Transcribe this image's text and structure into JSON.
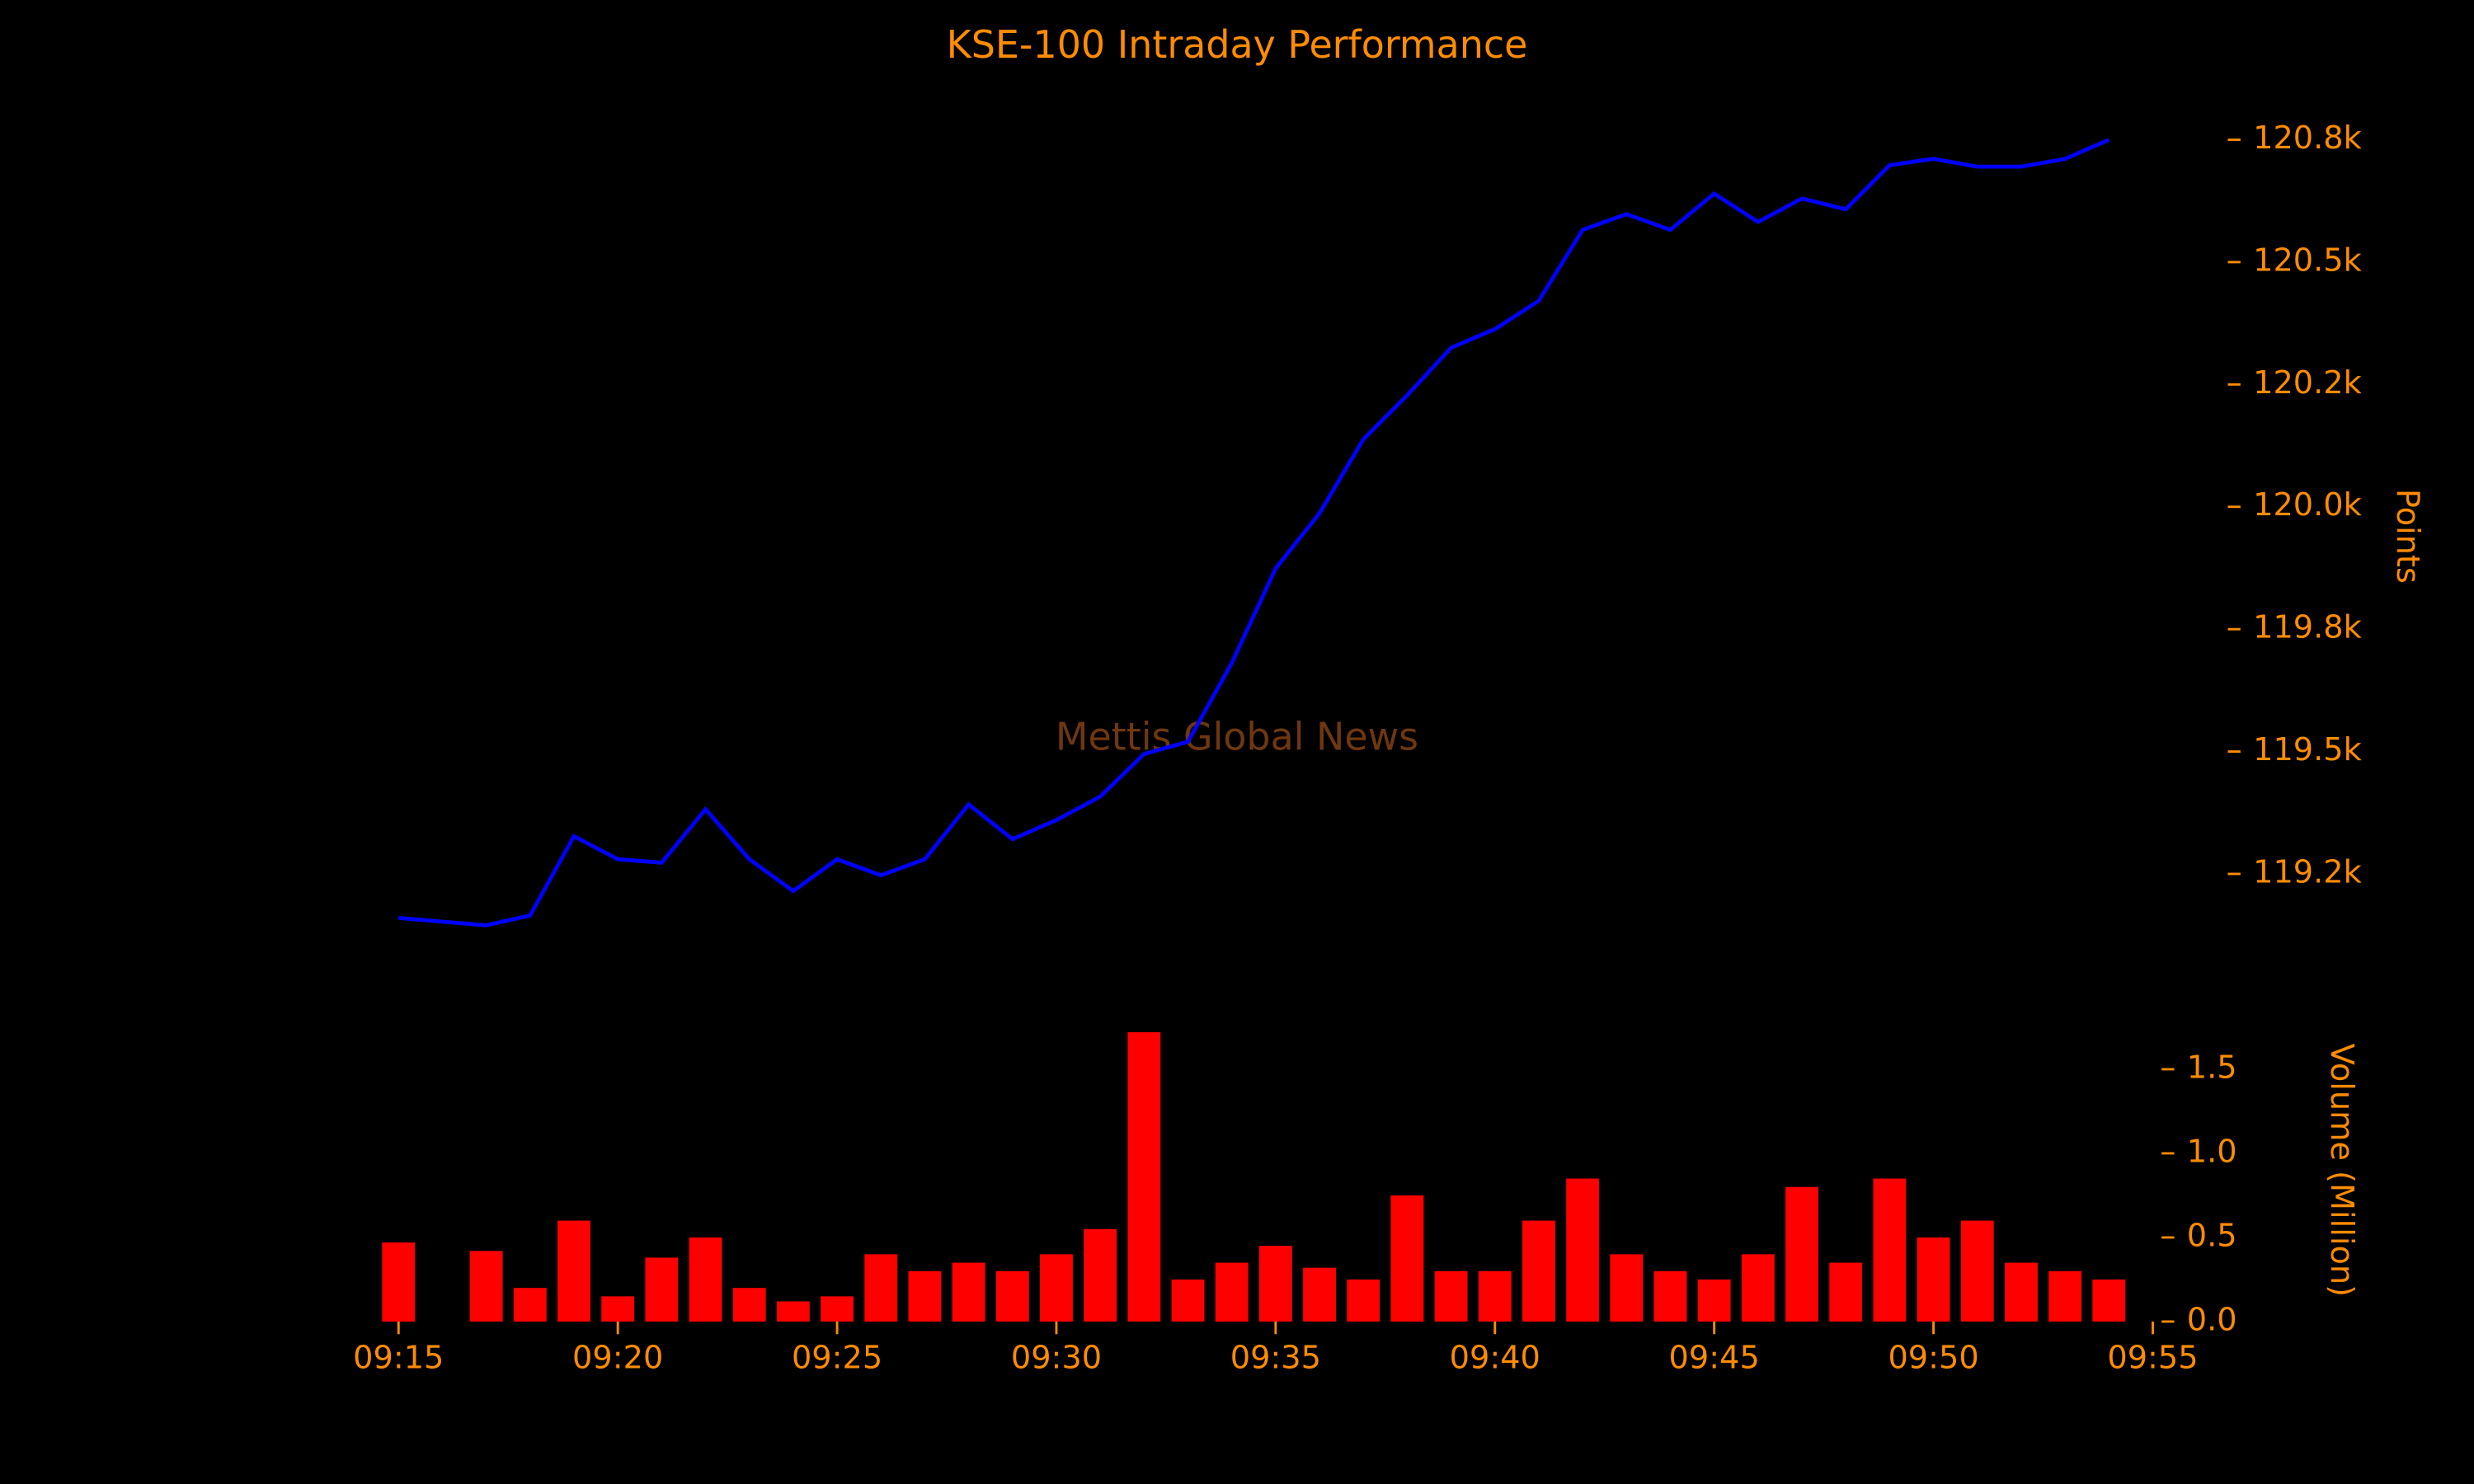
{
  "chart_data": [
    {
      "type": "line",
      "title": "KSE-100 Intraday Performance",
      "annotation": "Mettis Global News",
      "ylabel": "Points",
      "color": "#0000ff",
      "x": [
        "09:15",
        "09:17",
        "09:18",
        "09:19",
        "09:20",
        "09:21",
        "09:22",
        "09:23",
        "09:24",
        "09:25",
        "09:26",
        "09:27",
        "09:28",
        "09:29",
        "09:30",
        "09:31",
        "09:32",
        "09:33",
        "09:34",
        "09:35",
        "09:36",
        "09:37",
        "09:38",
        "09:39",
        "09:40",
        "09:41",
        "09:42",
        "09:43",
        "09:44",
        "09:45",
        "09:46",
        "09:47",
        "09:48",
        "09:49",
        "09:50",
        "09:51",
        "09:52",
        "09:53",
        "09:54"
      ],
      "values": [
        119160,
        119145,
        119165,
        119327,
        119280,
        119273,
        119382,
        119280,
        119215,
        119280,
        119247,
        119280,
        119392,
        119321,
        119360,
        119408,
        119495,
        119520,
        119681,
        119874,
        119987,
        120138,
        120228,
        120325,
        120363,
        120421,
        120566,
        120598,
        120566,
        120640,
        120582,
        120630,
        120608,
        120698,
        120711,
        120695,
        120695,
        120711,
        120750
      ],
      "xlim": [
        "09:13",
        "09:57"
      ],
      "ylim": [
        119070,
        120810
      ],
      "yticks": [
        {
          "value": 119250,
          "label": "119.2k"
        },
        {
          "value": 119500,
          "label": "119.5k"
        },
        {
          "value": 119750,
          "label": "119.8k"
        },
        {
          "value": 120000,
          "label": "120.0k"
        },
        {
          "value": 120250,
          "label": "120.2k"
        },
        {
          "value": 120500,
          "label": "120.5k"
        },
        {
          "value": 120750,
          "label": "120.8k"
        }
      ]
    },
    {
      "type": "bar",
      "ylabel": "Volume (Million)",
      "color": "#ff0000",
      "x": [
        "09:15",
        "09:17",
        "09:18",
        "09:19",
        "09:20",
        "09:21",
        "09:22",
        "09:23",
        "09:24",
        "09:25",
        "09:26",
        "09:27",
        "09:28",
        "09:29",
        "09:30",
        "09:31",
        "09:32",
        "09:33",
        "09:34",
        "09:35",
        "09:36",
        "09:37",
        "09:38",
        "09:39",
        "09:40",
        "09:41",
        "09:42",
        "09:43",
        "09:44",
        "09:45",
        "09:46",
        "09:47",
        "09:48",
        "09:49",
        "09:50",
        "09:51",
        "09:52",
        "09:53",
        "09:54"
      ],
      "values": [
        0.47,
        0.42,
        0.2,
        0.6,
        0.15,
        0.38,
        0.5,
        0.2,
        0.12,
        0.15,
        0.4,
        0.3,
        0.35,
        0.3,
        0.4,
        0.55,
        1.72,
        0.25,
        0.35,
        0.45,
        0.32,
        0.25,
        0.75,
        0.3,
        0.3,
        0.6,
        0.85,
        0.4,
        0.3,
        0.25,
        0.4,
        0.8,
        0.35,
        0.85,
        0.5,
        0.6,
        0.35,
        0.3,
        0.25
      ],
      "xlim": [
        "09:13",
        "09:57"
      ],
      "ylim": [
        0,
        1.8
      ],
      "xticks": [
        "09:15",
        "09:20",
        "09:25",
        "09:30",
        "09:35",
        "09:40",
        "09:45",
        "09:50",
        "09:55"
      ],
      "yticks": [
        {
          "value": 0,
          "label": "0.0"
        },
        0.5,
        {
          "value": 1,
          "label": "1.0"
        },
        1.5
      ]
    }
  ]
}
